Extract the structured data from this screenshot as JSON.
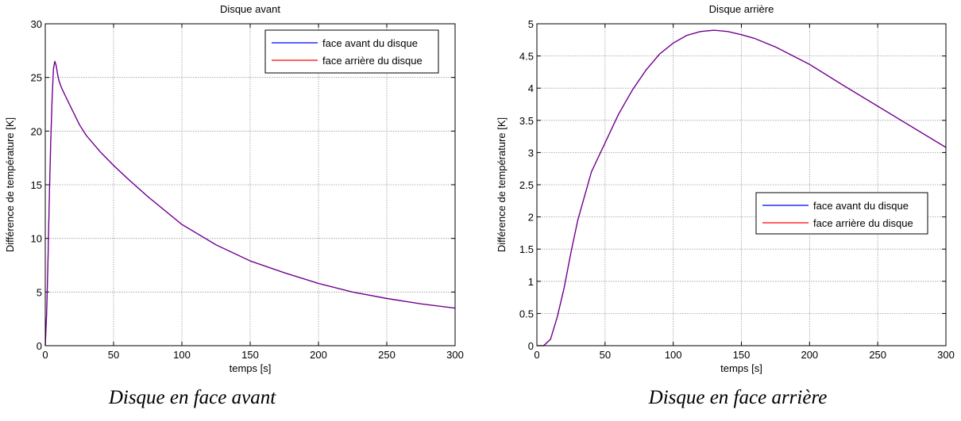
{
  "captions": {
    "left": "Disque en face avant",
    "right": "Disque en face arrière"
  },
  "colors": {
    "series_blue": "#0000ff",
    "series_red": "#ff0000",
    "overlap": "#a01090",
    "grid": "#9a9a9a",
    "axes": "#000000"
  },
  "chart_data": [
    {
      "type": "line",
      "title": "Disque avant",
      "xlabel": "temps [s]",
      "ylabel": "Différence de température [K]",
      "xlim": [
        0,
        300
      ],
      "ylim": [
        0,
        30
      ],
      "xticks": [
        0,
        50,
        100,
        150,
        200,
        250,
        300
      ],
      "yticks": [
        0,
        5,
        10,
        15,
        20,
        25,
        30
      ],
      "ytick_labels": [
        "0",
        "5",
        "10",
        "15",
        "20",
        "25",
        "30"
      ],
      "grid": true,
      "legend_position": "top-right",
      "series": [
        {
          "name": "face avant du disque",
          "color": "#0000ff",
          "x": [
            0,
            1,
            2,
            3,
            4,
            5,
            6,
            7,
            8,
            9,
            10,
            12,
            15,
            20,
            25,
            30,
            40,
            50,
            60,
            75,
            100,
            125,
            150,
            175,
            200,
            225,
            250,
            275,
            300
          ],
          "y": [
            0,
            3,
            8,
            14,
            19,
            23,
            25.8,
            26.5,
            26.1,
            25.3,
            24.7,
            24.0,
            23.2,
            21.9,
            20.6,
            19.6,
            18.1,
            16.8,
            15.6,
            13.9,
            11.3,
            9.4,
            7.9,
            6.8,
            5.8,
            5.0,
            4.4,
            3.9,
            3.5
          ]
        },
        {
          "name": "face arrière du disque",
          "color": "#ff0000",
          "x": [
            0,
            1,
            2,
            3,
            4,
            5,
            6,
            7,
            8,
            9,
            10,
            12,
            15,
            20,
            25,
            30,
            40,
            50,
            60,
            75,
            100,
            125,
            150,
            175,
            200,
            225,
            250,
            275,
            300
          ],
          "y": [
            0,
            3,
            8,
            14,
            19,
            23,
            25.8,
            26.5,
            26.1,
            25.3,
            24.7,
            24.0,
            23.2,
            21.9,
            20.6,
            19.6,
            18.1,
            16.8,
            15.6,
            13.9,
            11.3,
            9.4,
            7.9,
            6.8,
            5.8,
            5.0,
            4.4,
            3.9,
            3.5
          ]
        }
      ]
    },
    {
      "type": "line",
      "title": "Disque arrière",
      "xlabel": "temps [s]",
      "ylabel": "Différence de température [K]",
      "xlim": [
        0,
        300
      ],
      "ylim": [
        0,
        5
      ],
      "xticks": [
        0,
        50,
        100,
        150,
        200,
        250,
        300
      ],
      "yticks": [
        0,
        0.5,
        1,
        1.5,
        2,
        2.5,
        3,
        3.5,
        4,
        4.5,
        5
      ],
      "ytick_labels": [
        "0",
        "0.5",
        "1",
        "1.5",
        "2",
        "2.5",
        "3",
        "3.5",
        "4",
        "4.5",
        "5"
      ],
      "grid": true,
      "legend_position": "center-right",
      "series": [
        {
          "name": "face avant du disque",
          "color": "#0000ff",
          "x": [
            0,
            5,
            10,
            15,
            20,
            25,
            30,
            40,
            50,
            60,
            70,
            80,
            90,
            100,
            110,
            120,
            130,
            140,
            150,
            160,
            175,
            200,
            225,
            250,
            275,
            300
          ],
          "y": [
            0,
            0,
            0.1,
            0.45,
            0.9,
            1.45,
            1.95,
            2.7,
            3.15,
            3.6,
            3.97,
            4.28,
            4.53,
            4.7,
            4.82,
            4.88,
            4.9,
            4.88,
            4.83,
            4.77,
            4.64,
            4.37,
            4.04,
            3.72,
            3.4,
            3.08
          ]
        },
        {
          "name": "face arrière du disque",
          "color": "#ff0000",
          "x": [
            0,
            5,
            10,
            15,
            20,
            25,
            30,
            40,
            50,
            60,
            70,
            80,
            90,
            100,
            110,
            120,
            130,
            140,
            150,
            160,
            175,
            200,
            225,
            250,
            275,
            300
          ],
          "y": [
            0,
            0,
            0.1,
            0.45,
            0.9,
            1.45,
            1.95,
            2.7,
            3.15,
            3.6,
            3.97,
            4.28,
            4.53,
            4.7,
            4.82,
            4.88,
            4.9,
            4.88,
            4.83,
            4.77,
            4.64,
            4.37,
            4.04,
            3.72,
            3.4,
            3.08
          ]
        }
      ]
    }
  ]
}
